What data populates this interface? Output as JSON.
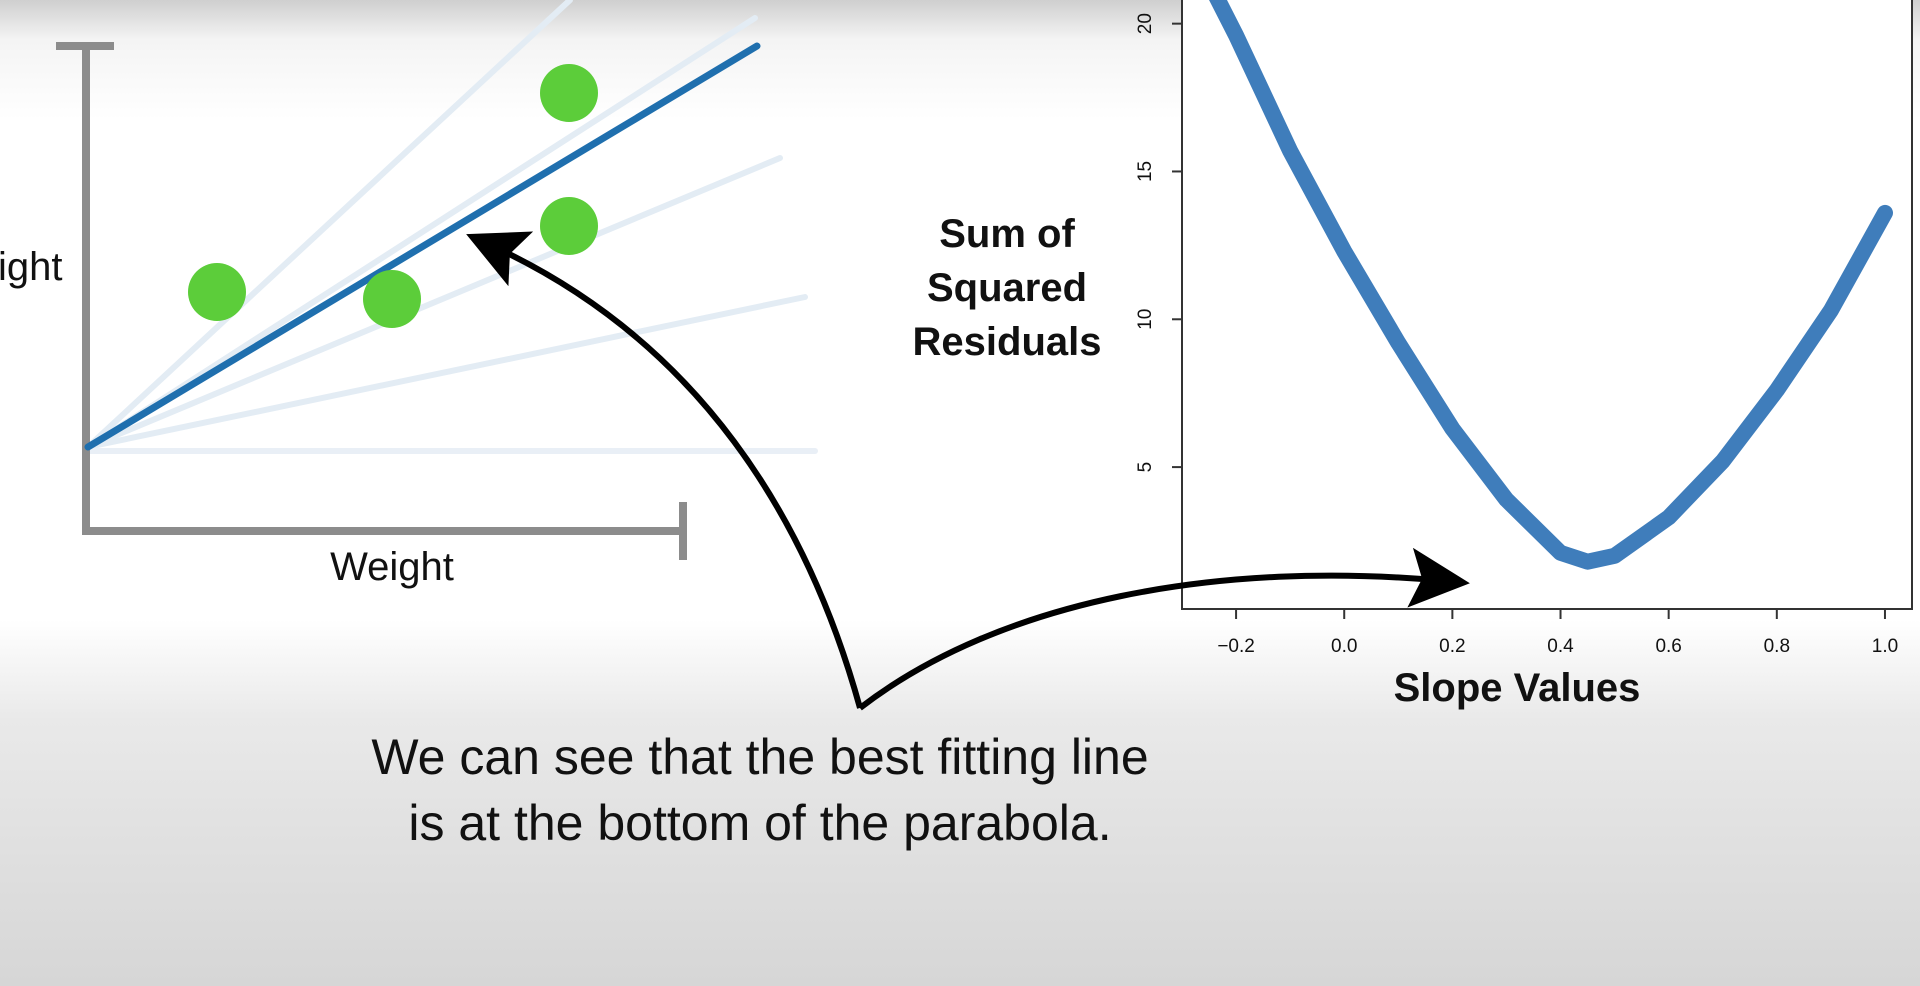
{
  "left_plot": {
    "xlabel": "Weight",
    "ylabel_partial": "ight",
    "colors": {
      "axis": "#8c8c8c",
      "point": "#5ccd3a",
      "best_line": "#1f6fae",
      "faint_line": "#e3ecf4"
    }
  },
  "chart_data": {
    "type": "line",
    "xlabel": "Slope Values",
    "ylabel_lines": [
      "Sum of",
      "Squared",
      "Residuals"
    ],
    "xlim": [
      -0.3,
      1.05
    ],
    "ylim": [
      0.2,
      20.8
    ],
    "x_ticks": [
      -0.2,
      0.0,
      0.2,
      0.4,
      0.6,
      0.8,
      1.0
    ],
    "x_tick_labels": [
      "−0.2",
      "0.0",
      "0.2",
      "0.4",
      "0.6",
      "0.8",
      "1.0"
    ],
    "y_ticks": [
      5,
      10,
      15,
      20
    ],
    "y_tick_labels": [
      "5",
      "10",
      "15",
      "20"
    ],
    "series": [
      {
        "color": "#3f7dbb",
        "x": [
          -0.25,
          -0.2,
          -0.1,
          0.0,
          0.1,
          0.2,
          0.3,
          0.4,
          0.45,
          0.5,
          0.6,
          0.7,
          0.8,
          0.9,
          1.0
        ],
        "y": [
          21.4,
          19.6,
          15.7,
          12.3,
          9.2,
          6.3,
          3.9,
          2.1,
          1.8,
          2.0,
          3.3,
          5.2,
          7.6,
          10.3,
          13.6
        ]
      }
    ]
  },
  "caption": {
    "line1": "We can see that the best fitting line",
    "line2": "is at the bottom of the parabola."
  }
}
